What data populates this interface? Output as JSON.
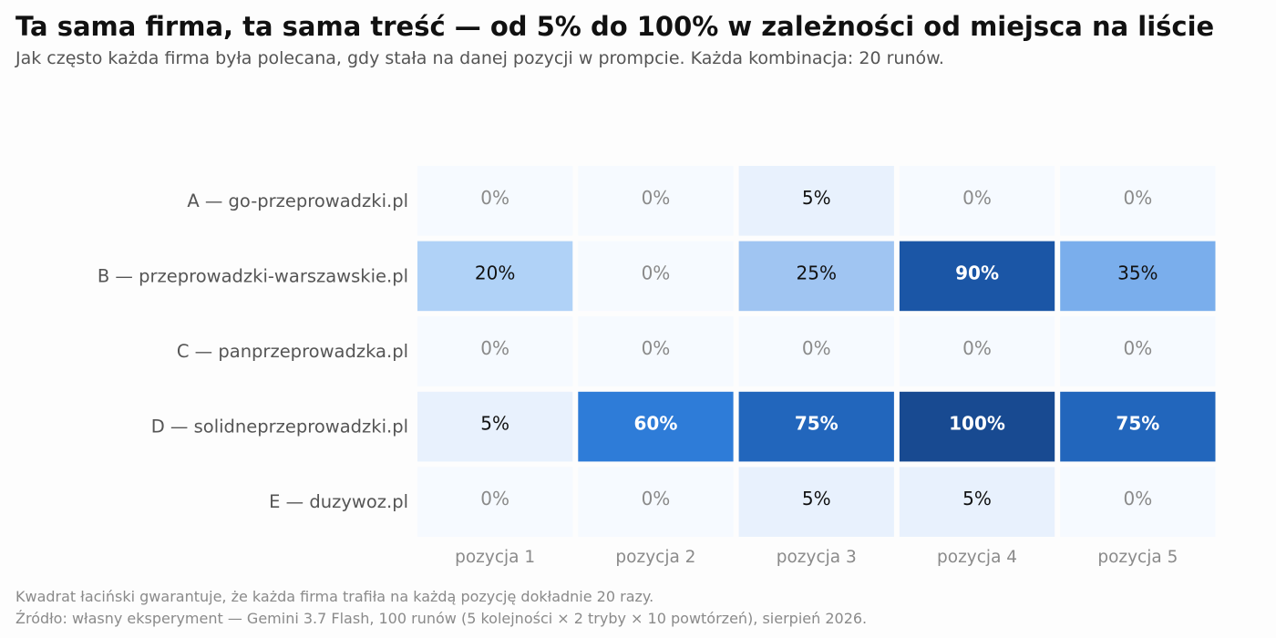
{
  "title": "Ta sama firma, ta sama treść — od 5% do 100% w zależności od miejsca na liście",
  "subtitle": "Jak często każda firma była polecana, gdy stała na danej pozycji w prompcie. Każda kombinacja: 20 runów.",
  "footer": {
    "note": "Kwadrat łaciński gwarantuje, że każda firma trafiła na każdą pozycję dokładnie 20 razy.",
    "source": "Źródło: własny eksperyment — Gemini 3.7 Flash, 100 runów (5 kolejności × 2 tryby × 10 powtórzeń), sierpień 2026."
  },
  "chart_data": {
    "type": "heatmap",
    "title": "Ta sama firma, ta sama treść — od 5% do 100% w zależności od miejsca na liście",
    "subtitle": "Jak często każda firma była polecana, gdy stała na danej pozycji w prompcie. Każda kombinacja: 20 runów.",
    "rows": [
      "A — go-przeprowadzki.pl",
      "B — przeprowadzki-warszawskie.pl",
      "C — panprzeprowadzka.pl",
      "D — solidneprzeprowadzki.pl",
      "E — duzywoz.pl"
    ],
    "columns": [
      "pozycja 1",
      "pozycja 2",
      "pozycja 3",
      "pozycja 4",
      "pozycja 5"
    ],
    "values": [
      [
        0,
        0,
        5,
        0,
        0
      ],
      [
        20,
        0,
        25,
        90,
        35
      ],
      [
        0,
        0,
        0,
        0,
        0
      ],
      [
        5,
        60,
        75,
        100,
        75
      ],
      [
        0,
        0,
        5,
        5,
        0
      ]
    ],
    "value_suffix": "%",
    "value_range": [
      0,
      100
    ],
    "colormap": "Blues"
  }
}
